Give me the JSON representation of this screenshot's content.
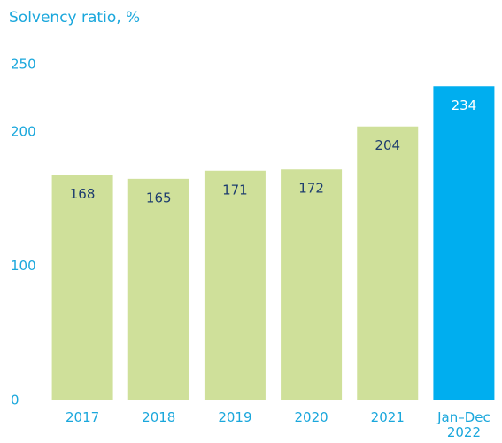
{
  "chart_data": {
    "type": "bar",
    "title": "Solvency ratio, %",
    "categories": [
      "2017",
      "2018",
      "2019",
      "2020",
      "2021",
      "Jan–Dec 2022"
    ],
    "values": [
      168,
      165,
      171,
      172,
      204,
      234
    ],
    "colors": [
      "#cfe09a",
      "#cfe09a",
      "#cfe09a",
      "#cfe09a",
      "#cfe09a",
      "#00aeef"
    ],
    "ylim": [
      0,
      250
    ],
    "yticks": [
      0,
      100,
      200,
      250
    ],
    "grid": false
  }
}
